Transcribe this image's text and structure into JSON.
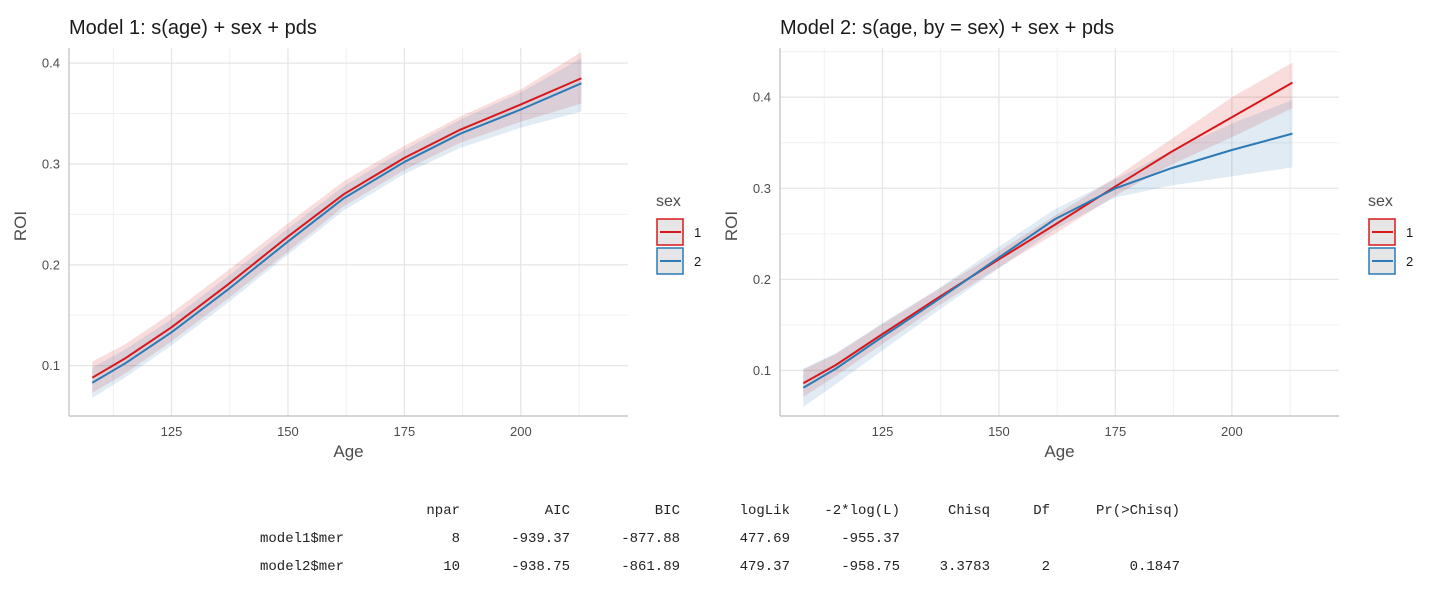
{
  "chart_data": [
    {
      "type": "line",
      "title": "Model 1: s(age) + sex + pds",
      "xlabel": "Age",
      "ylabel": "ROI",
      "xlim": [
        103,
        223
      ],
      "ylim": [
        0.05,
        0.415
      ],
      "xticks": [
        125,
        150,
        175,
        200
      ],
      "yticks": [
        0.1,
        0.2,
        0.3,
        0.4
      ],
      "grid": true,
      "legend": {
        "title": "sex",
        "position": "right",
        "entries": [
          "1",
          "2"
        ]
      },
      "series": [
        {
          "name": "1",
          "color": "#d7191c",
          "x": [
            108,
            115,
            125,
            137,
            150,
            162,
            175,
            187,
            200,
            213
          ],
          "y": [
            0.088,
            0.107,
            0.138,
            0.18,
            0.228,
            0.27,
            0.306,
            0.334,
            0.359,
            0.385
          ],
          "lower": [
            0.073,
            0.092,
            0.124,
            0.166,
            0.213,
            0.258,
            0.294,
            0.321,
            0.342,
            0.36
          ],
          "upper": [
            0.104,
            0.121,
            0.152,
            0.194,
            0.241,
            0.283,
            0.318,
            0.347,
            0.374,
            0.411
          ]
        },
        {
          "name": "2",
          "color": "#2c7bb6",
          "x": [
            108,
            115,
            125,
            137,
            150,
            162,
            175,
            187,
            200,
            213
          ],
          "y": [
            0.083,
            0.102,
            0.133,
            0.175,
            0.223,
            0.266,
            0.302,
            0.33,
            0.354,
            0.38
          ],
          "lower": [
            0.068,
            0.088,
            0.12,
            0.162,
            0.21,
            0.254,
            0.29,
            0.316,
            0.336,
            0.352
          ],
          "upper": [
            0.098,
            0.116,
            0.146,
            0.188,
            0.236,
            0.278,
            0.314,
            0.344,
            0.371,
            0.405
          ]
        }
      ]
    },
    {
      "type": "line",
      "title": "Model 2: s(age, by = sex) + sex + pds",
      "xlabel": "Age",
      "ylabel": "ROI",
      "xlim": [
        103,
        223
      ],
      "ylim": [
        0.05,
        0.454
      ],
      "xticks": [
        125,
        150,
        175,
        200
      ],
      "yticks": [
        0.1,
        0.2,
        0.3,
        0.4
      ],
      "grid": true,
      "legend": {
        "title": "sex",
        "position": "right",
        "entries": [
          "1",
          "2"
        ]
      },
      "series": [
        {
          "name": "1",
          "color": "#d7191c",
          "x": [
            108,
            115,
            125,
            137,
            150,
            162,
            175,
            187,
            200,
            213
          ],
          "y": [
            0.086,
            0.106,
            0.14,
            0.18,
            0.222,
            0.26,
            0.302,
            0.34,
            0.378,
            0.416
          ],
          "lower": [
            0.071,
            0.094,
            0.129,
            0.171,
            0.213,
            0.25,
            0.292,
            0.326,
            0.356,
            0.388
          ],
          "upper": [
            0.101,
            0.118,
            0.151,
            0.189,
            0.231,
            0.27,
            0.312,
            0.354,
            0.4,
            0.438
          ]
        },
        {
          "name": "2",
          "color": "#2c7bb6",
          "x": [
            108,
            115,
            125,
            137,
            150,
            162,
            175,
            187,
            200,
            213
          ],
          "y": [
            0.081,
            0.102,
            0.137,
            0.178,
            0.224,
            0.266,
            0.3,
            0.322,
            0.342,
            0.36
          ],
          "lower": [
            0.06,
            0.085,
            0.122,
            0.166,
            0.212,
            0.255,
            0.29,
            0.303,
            0.313,
            0.323
          ],
          "upper": [
            0.102,
            0.119,
            0.152,
            0.19,
            0.236,
            0.277,
            0.31,
            0.341,
            0.371,
            0.397
          ]
        }
      ]
    }
  ],
  "anova_table": {
    "headers": [
      "npar",
      "AIC",
      "BIC",
      "logLik",
      "-2*log(L)",
      "Chisq",
      "Df",
      "Pr(>Chisq)"
    ],
    "rows": [
      {
        "name": "model1$mer",
        "values": [
          "8",
          "-939.37",
          "-877.88",
          "477.69",
          "-955.37",
          "",
          "",
          ""
        ]
      },
      {
        "name": "model2$mer",
        "values": [
          "10",
          "-938.75",
          "-861.89",
          "479.37",
          "-958.75",
          "3.3783",
          "2",
          "0.1847"
        ]
      }
    ]
  }
}
